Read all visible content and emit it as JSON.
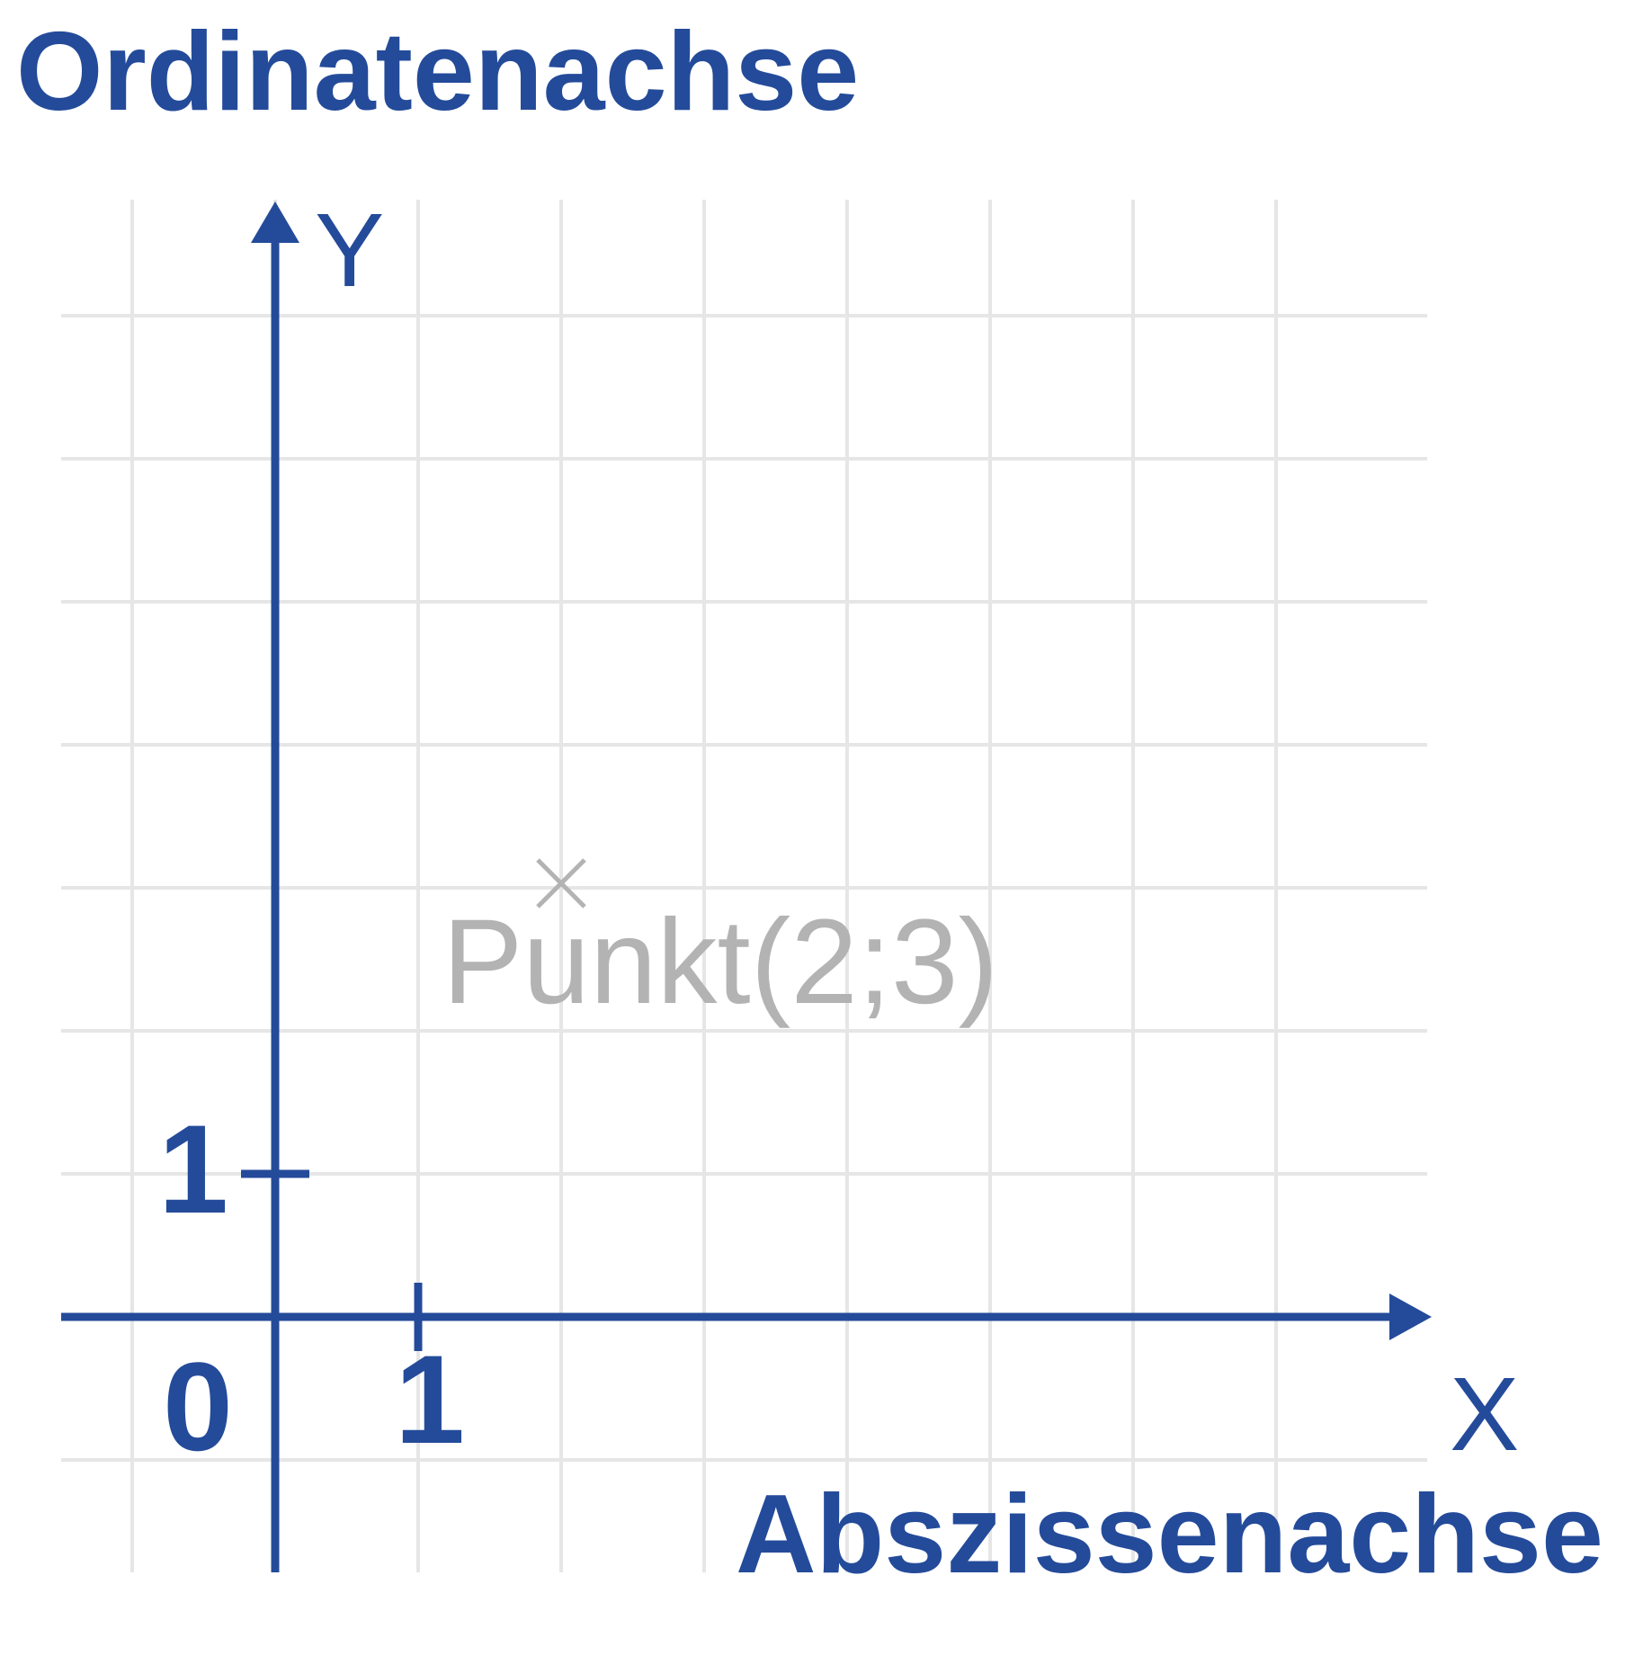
{
  "title_top": "Ordinatenachse",
  "title_bottom": "Abszissenachse",
  "axes": {
    "x_label": "X",
    "y_label": "Y",
    "origin_label": "0",
    "x_tick_label": "1",
    "y_tick_label": "1"
  },
  "point": {
    "x": 2,
    "y": 3,
    "label": "Punkt(2;3)"
  },
  "colors": {
    "axis": "#244b9a",
    "grid": "#e6e6e6",
    "point": "#b3b3b3"
  },
  "grid": true
}
